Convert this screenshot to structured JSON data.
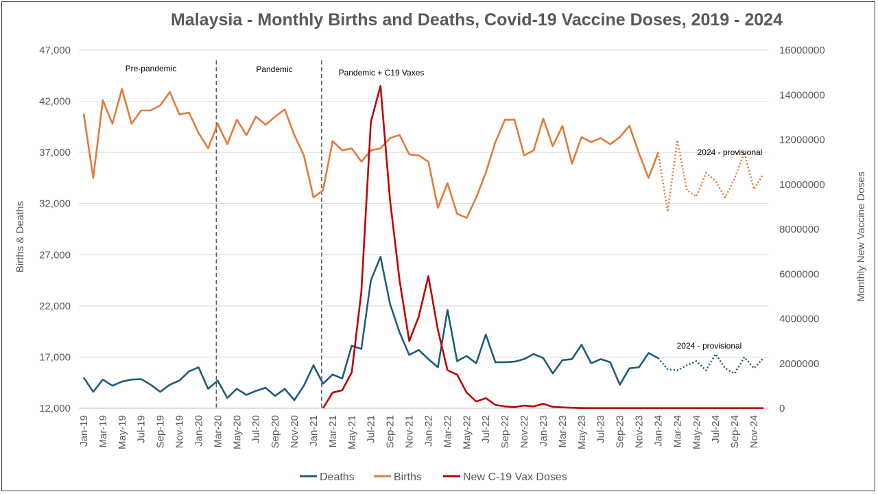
{
  "chart_data": {
    "type": "line",
    "title": "Malaysia - Monthly Births and Deaths, Covid-19 Vaccine Doses, 2019 - 2024",
    "ylabel": "Births & Deaths",
    "y2label": "Monthly New Vaccine Doses",
    "ylim": [
      12000,
      47000
    ],
    "y2lim": [
      0,
      16000000
    ],
    "yticks": [
      "12,000",
      "17,000",
      "22,000",
      "27,000",
      "32,000",
      "37,000",
      "42,000",
      "47,000"
    ],
    "y2ticks": [
      "0",
      "2000000",
      "4000000",
      "6000000",
      "8000000",
      "10000000",
      "12000000",
      "14000000",
      "16000000"
    ],
    "grid": true,
    "legend_position": "bottom",
    "x_tick_labels": [
      "Jan-19",
      "Mar-19",
      "May-19",
      "Jul-19",
      "Sep-19",
      "Nov-19",
      "Jan-20",
      "Mar-20",
      "May-20",
      "Jul-20",
      "Sep-20",
      "Nov-20",
      "Jan-21",
      "Mar-21",
      "May-21",
      "Jul-21",
      "Sep-21",
      "Nov-21",
      "Jan-22",
      "Mar-22",
      "May-22",
      "Jul-22",
      "Sep-22",
      "Nov-22",
      "Jan-23",
      "Mar-23",
      "May-23",
      "Jul-23",
      "Sep-23",
      "Nov-23",
      "Jan-24",
      "Mar-24",
      "May-24",
      "Jul-24",
      "Sep-24",
      "Nov-24"
    ],
    "x": [
      "Jan-19",
      "Feb-19",
      "Mar-19",
      "Apr-19",
      "May-19",
      "Jun-19",
      "Jul-19",
      "Aug-19",
      "Sep-19",
      "Oct-19",
      "Nov-19",
      "Dec-19",
      "Jan-20",
      "Feb-20",
      "Mar-20",
      "Apr-20",
      "May-20",
      "Jun-20",
      "Jul-20",
      "Aug-20",
      "Sep-20",
      "Oct-20",
      "Nov-20",
      "Dec-20",
      "Jan-21",
      "Feb-21",
      "Mar-21",
      "Apr-21",
      "May-21",
      "Jun-21",
      "Jul-21",
      "Aug-21",
      "Sep-21",
      "Oct-21",
      "Nov-21",
      "Dec-21",
      "Jan-22",
      "Feb-22",
      "Mar-22",
      "Apr-22",
      "May-22",
      "Jun-22",
      "Jul-22",
      "Aug-22",
      "Sep-22",
      "Oct-22",
      "Nov-22",
      "Dec-22",
      "Jan-23",
      "Feb-23",
      "Mar-23",
      "Apr-23",
      "May-23",
      "Jun-23",
      "Jul-23",
      "Aug-23",
      "Sep-23",
      "Oct-23",
      "Nov-23",
      "Dec-23",
      "Jan-24",
      "Feb-24",
      "Mar-24",
      "Apr-24",
      "May-24",
      "Jun-24",
      "Jul-24",
      "Aug-24",
      "Sep-24",
      "Oct-24",
      "Nov-24",
      "Dec-24"
    ],
    "series": [
      {
        "name": "Deaths",
        "color": "#1f5c7a",
        "axis": "left",
        "values": [
          15000,
          13600,
          14800,
          14200,
          14600,
          14800,
          14850,
          14300,
          13600,
          14300,
          14700,
          15600,
          16000,
          13900,
          14700,
          13000,
          13900,
          13300,
          13700,
          14000,
          13200,
          13900,
          12800,
          14200,
          16200,
          14400,
          15300,
          14900,
          18100,
          17800,
          24500,
          26800,
          22200,
          19400,
          17200,
          17700,
          16800,
          16000,
          21600,
          16600,
          17100,
          16400,
          19200,
          16500,
          16500,
          16550,
          16800,
          17300,
          16900,
          15400,
          16700,
          16800,
          18200,
          16400,
          16800,
          16500,
          14300,
          15900,
          16000,
          17400,
          16900,
          null,
          null,
          null,
          null,
          null,
          null,
          null,
          null,
          null,
          null,
          null
        ]
      },
      {
        "name": "Deaths 2024 - provisional",
        "color": "#1f5c7a",
        "axis": "left",
        "dotted": true,
        "values": [
          null,
          null,
          null,
          null,
          null,
          null,
          null,
          null,
          null,
          null,
          null,
          null,
          null,
          null,
          null,
          null,
          null,
          null,
          null,
          null,
          null,
          null,
          null,
          null,
          null,
          null,
          null,
          null,
          null,
          null,
          null,
          null,
          null,
          null,
          null,
          null,
          null,
          null,
          null,
          null,
          null,
          null,
          null,
          null,
          null,
          null,
          null,
          null,
          null,
          null,
          null,
          null,
          null,
          null,
          null,
          null,
          null,
          null,
          null,
          null,
          16900,
          15800,
          15700,
          16200,
          16600,
          15700,
          17300,
          15900,
          15400,
          17000,
          15900,
          16900
        ]
      },
      {
        "name": "Births",
        "color": "#e07b39",
        "axis": "left",
        "values": [
          40800,
          34500,
          42100,
          39800,
          43200,
          39800,
          41100,
          41100,
          41600,
          42900,
          40700,
          40900,
          38900,
          37400,
          39800,
          37800,
          40200,
          38700,
          40500,
          39700,
          40500,
          41200,
          38700,
          36700,
          32600,
          33300,
          38100,
          37200,
          37400,
          36100,
          37200,
          37400,
          38400,
          38700,
          36800,
          36700,
          36100,
          31600,
          34000,
          31000,
          30600,
          32600,
          35000,
          38000,
          40200,
          40200,
          36700,
          37200,
          40300,
          37600,
          39600,
          35900,
          38500,
          38000,
          38400,
          37800,
          38500,
          39600,
          36900,
          34500,
          37000,
          null,
          null,
          null,
          null,
          null,
          null,
          null,
          null,
          null,
          null,
          null
        ]
      },
      {
        "name": "Births 2024 - provisional",
        "color": "#e07b39",
        "axis": "left",
        "dotted": true,
        "values": [
          null,
          null,
          null,
          null,
          null,
          null,
          null,
          null,
          null,
          null,
          null,
          null,
          null,
          null,
          null,
          null,
          null,
          null,
          null,
          null,
          null,
          null,
          null,
          null,
          null,
          null,
          null,
          null,
          null,
          null,
          null,
          null,
          null,
          null,
          null,
          null,
          null,
          null,
          null,
          null,
          null,
          null,
          null,
          null,
          null,
          null,
          null,
          null,
          null,
          null,
          null,
          null,
          null,
          null,
          null,
          null,
          null,
          null,
          null,
          null,
          37000,
          31200,
          38200,
          33300,
          32700,
          35000,
          34200,
          32600,
          34500,
          37000,
          33400,
          34900
        ]
      },
      {
        "name": "New C-19 Vax Doses",
        "color": "#c00000",
        "axis": "right",
        "values": [
          null,
          null,
          null,
          null,
          null,
          null,
          null,
          null,
          null,
          null,
          null,
          null,
          null,
          null,
          null,
          null,
          null,
          null,
          null,
          null,
          null,
          null,
          null,
          null,
          null,
          0,
          700000,
          800000,
          1600000,
          5200000,
          12800000,
          14400000,
          9300000,
          5700000,
          3000000,
          4100000,
          5900000,
          3500000,
          1700000,
          1500000,
          700000,
          300000,
          450000,
          150000,
          80000,
          50000,
          120000,
          80000,
          200000,
          60000,
          40000,
          20000,
          10000,
          5000,
          5000,
          5000,
          5000,
          5000,
          5000,
          5000,
          5000,
          5000,
          5000,
          5000,
          5000,
          5000,
          5000,
          5000,
          5000,
          5000,
          5000,
          5000
        ]
      }
    ],
    "legend": [
      "Deaths",
      "Births",
      "New C-19 Vax Doses"
    ],
    "annotations": {
      "pre_pandemic": "Pre-pandemic",
      "pandemic": "Pandemic",
      "pandemic_vax": "Pandemic + C19 Vaxes",
      "births_provisional": "2024 - provisional",
      "deaths_provisional": "2024 - provisional"
    }
  }
}
